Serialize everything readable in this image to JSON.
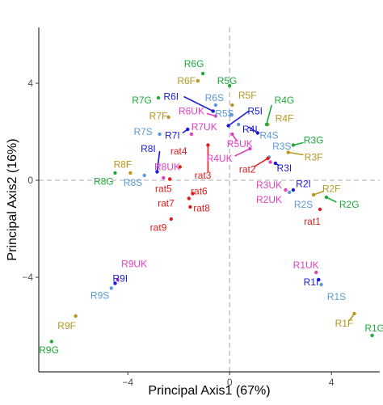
{
  "chart_data": {
    "type": "scatter",
    "xlabel": "Principal Axis1 (67%)",
    "ylabel": "Principal Axis2 (16%)",
    "xlim": [
      -7.5,
      5.9
    ],
    "ylim": [
      -7.9,
      6.3
    ],
    "xticks": [
      -4,
      0,
      4
    ],
    "yticks": [
      -4,
      0,
      4
    ],
    "tick_labels": {
      "x": [
        "−4",
        "0",
        "4"
      ],
      "y": [
        "−4",
        "0",
        "4"
      ]
    },
    "reference_lines": {
      "x": 0,
      "y": 0,
      "style": "dashed"
    },
    "grid": false,
    "legend": "none",
    "colors": {
      "red": "#e31a1c",
      "gold": "#b8961e",
      "green": "#1eab3c",
      "blue": "#1a1ad6",
      "sky": "#5b9ad5",
      "magenta": "#e040c0",
      "axis": "#000000",
      "refline": "#c8c8c8",
      "tick_text": "#4d4d4d"
    },
    "points": [
      {
        "label": "R1F",
        "color": "gold",
        "x": 4.9,
        "y": -5.5,
        "lx": 4.5,
        "ly": -5.9
      },
      {
        "label": "R1G",
        "color": "green",
        "x": 5.6,
        "y": -6.4,
        "lx": 5.7,
        "ly": -6.1
      },
      {
        "label": "R1I",
        "color": "blue",
        "x": 3.5,
        "y": -4.1,
        "lx": 3.2,
        "ly": -4.2
      },
      {
        "label": "R1S",
        "color": "sky",
        "x": 3.6,
        "y": -4.3,
        "lx": 4.2,
        "ly": -4.8
      },
      {
        "label": "R1UK",
        "color": "magenta",
        "x": 3.4,
        "y": -3.8,
        "lx": 3.0,
        "ly": -3.5
      },
      {
        "label": "R2F",
        "color": "gold",
        "x": 3.3,
        "y": -0.6,
        "lx": 4.0,
        "ly": -0.35
      },
      {
        "label": "R2G",
        "color": "green",
        "x": 3.8,
        "y": -0.7,
        "lx": 4.7,
        "ly": -1.0
      },
      {
        "label": "R2I",
        "color": "blue",
        "x": 2.5,
        "y": -0.4,
        "lx": 2.9,
        "ly": -0.15
      },
      {
        "label": "R2S",
        "color": "sky",
        "x": 2.35,
        "y": -0.5,
        "lx": 2.9,
        "ly": -1.0
      },
      {
        "label": "R2UK",
        "color": "magenta",
        "x": 2.2,
        "y": -0.4,
        "lx": 1.55,
        "ly": -0.8
      },
      {
        "label": "R3F",
        "color": "gold",
        "x": 2.3,
        "y": 1.15,
        "lx": 3.3,
        "ly": 0.95
      },
      {
        "label": "R3G",
        "color": "green",
        "x": 2.5,
        "y": 1.45,
        "lx": 3.3,
        "ly": 1.65
      },
      {
        "label": "R3I",
        "color": "blue",
        "x": 1.8,
        "y": 0.7,
        "lx": 2.15,
        "ly": 0.5
      },
      {
        "label": "R3S",
        "color": "sky",
        "x": 1.55,
        "y": 0.95,
        "lx": 2.05,
        "ly": 1.4
      },
      {
        "label": "R3UK",
        "color": "magenta",
        "x": 1.6,
        "y": 0.75,
        "lx": 1.55,
        "ly": -0.2
      },
      {
        "label": "R4F",
        "color": "gold",
        "x": 1.5,
        "y": 2.3,
        "lx": 2.15,
        "ly": 2.55
      },
      {
        "label": "R4G",
        "color": "green",
        "x": 1.45,
        "y": 2.3,
        "lx": 2.15,
        "ly": 3.3
      },
      {
        "label": "R4I",
        "color": "blue",
        "x": 1.1,
        "y": 1.95,
        "lx": 0.8,
        "ly": 2.1
      },
      {
        "label": "R4S",
        "color": "sky",
        "x": 0.35,
        "y": 2.3,
        "lx": 1.55,
        "ly": 1.85
      },
      {
        "label": "R4UK",
        "color": "magenta",
        "x": 0.8,
        "y": 1.3,
        "lx": -0.4,
        "ly": 0.9
      },
      {
        "label": "R5F",
        "color": "gold",
        "x": 0.1,
        "y": 3.1,
        "lx": 0.7,
        "ly": 3.5
      },
      {
        "label": "R5G",
        "color": "green",
        "x": 0.0,
        "y": 3.9,
        "lx": -0.1,
        "ly": 4.1
      },
      {
        "label": "R5I",
        "color": "blue",
        "x": -0.05,
        "y": 2.25,
        "lx": 1.0,
        "ly": 2.85
      },
      {
        "label": "R5S",
        "color": "sky",
        "x": 0.05,
        "y": 2.7,
        "lx": -0.2,
        "ly": 2.75
      },
      {
        "label": "R5UK",
        "color": "magenta",
        "x": 0.1,
        "y": 1.9,
        "lx": 0.4,
        "ly": 1.5
      },
      {
        "label": "R6F",
        "color": "gold",
        "x": -1.25,
        "y": 4.1,
        "lx": -1.7,
        "ly": 4.1
      },
      {
        "label": "R6G",
        "color": "green",
        "x": -1.05,
        "y": 4.4,
        "lx": -1.4,
        "ly": 4.8
      },
      {
        "label": "R6I",
        "color": "blue",
        "x": -0.65,
        "y": 2.85,
        "lx": -2.3,
        "ly": 3.45
      },
      {
        "label": "R6S",
        "color": "sky",
        "x": -0.55,
        "y": 3.1,
        "lx": -0.6,
        "ly": 3.4
      },
      {
        "label": "R6UK",
        "color": "magenta",
        "x": -0.55,
        "y": 2.65,
        "lx": -1.5,
        "ly": 2.85
      },
      {
        "label": "R7F",
        "color": "gold",
        "x": -2.4,
        "y": 2.6,
        "lx": -2.8,
        "ly": 2.65
      },
      {
        "label": "R7G",
        "color": "green",
        "x": -2.8,
        "y": 3.4,
        "lx": -3.45,
        "ly": 3.3
      },
      {
        "label": "R7I",
        "color": "blue",
        "x": -1.65,
        "y": 2.1,
        "lx": -2.25,
        "ly": 1.85
      },
      {
        "label": "R7S",
        "color": "sky",
        "x": -2.75,
        "y": 1.9,
        "lx": -3.4,
        "ly": 2.0
      },
      {
        "label": "R7UK",
        "color": "magenta",
        "x": -1.5,
        "y": 1.9,
        "lx": -1.0,
        "ly": 2.2
      },
      {
        "label": "R8F",
        "color": "gold",
        "x": -3.9,
        "y": 0.3,
        "lx": -4.2,
        "ly": 0.65
      },
      {
        "label": "R8G",
        "color": "green",
        "x": -4.5,
        "y": 0.3,
        "lx": -4.95,
        "ly": -0.05
      },
      {
        "label": "R8I",
        "color": "blue",
        "x": -2.85,
        "y": 0.35,
        "lx": -3.2,
        "ly": 1.3
      },
      {
        "label": "R8S",
        "color": "sky",
        "x": -3.35,
        "y": 0.2,
        "lx": -3.8,
        "ly": -0.1
      },
      {
        "label": "R8UK",
        "color": "magenta",
        "x": -2.6,
        "y": 0.1,
        "lx": -2.45,
        "ly": 0.55
      },
      {
        "label": "R9F",
        "color": "gold",
        "x": -6.05,
        "y": -5.6,
        "lx": -6.4,
        "ly": -6.0
      },
      {
        "label": "R9G",
        "color": "green",
        "x": -7.0,
        "y": -6.65,
        "lx": -7.1,
        "ly": -7.0
      },
      {
        "label": "R9I",
        "color": "blue",
        "x": -4.5,
        "y": -4.25,
        "lx": -4.3,
        "ly": -4.05
      },
      {
        "label": "R9S",
        "color": "sky",
        "x": -4.65,
        "y": -4.45,
        "lx": -5.1,
        "ly": -4.75
      },
      {
        "label": "R9UK",
        "color": "magenta",
        "x": -4.4,
        "y": -4.1,
        "lx": -3.75,
        "ly": -3.45
      },
      {
        "label": "rat1",
        "color": "red",
        "x": 3.55,
        "y": -1.2,
        "lx": 3.25,
        "ly": -1.7
      },
      {
        "label": "rat2",
        "color": "red",
        "x": 1.5,
        "y": 0.9,
        "lx": 0.7,
        "ly": 0.45
      },
      {
        "label": "rat3",
        "color": "red",
        "x": -0.85,
        "y": 1.45,
        "lx": -1.05,
        "ly": 0.2
      },
      {
        "label": "rat4",
        "color": "red",
        "x": -1.95,
        "y": 0.55,
        "lx": -2.0,
        "ly": 1.2
      },
      {
        "label": "rat5",
        "color": "red",
        "x": -2.35,
        "y": 0.05,
        "lx": -2.6,
        "ly": -0.35
      },
      {
        "label": "rat6",
        "color": "red",
        "x": -1.45,
        "y": -0.55,
        "lx": -1.2,
        "ly": -0.45
      },
      {
        "label": "rat7",
        "color": "red",
        "x": -1.6,
        "y": -0.75,
        "lx": -2.5,
        "ly": -0.95
      },
      {
        "label": "rat8",
        "color": "red",
        "x": -1.55,
        "y": -1.1,
        "lx": -1.1,
        "ly": -1.15
      },
      {
        "label": "rat9",
        "color": "red",
        "x": -2.3,
        "y": -1.6,
        "lx": -2.8,
        "ly": -1.95
      }
    ],
    "connectors": [
      {
        "from": "R5I",
        "label_end": [
          0.75,
          2.85
        ]
      },
      {
        "from": "R6I",
        "label_end": [
          -1.8,
          3.45
        ]
      },
      {
        "from": "R4UK",
        "label_end": [
          0.2,
          1.0
        ]
      },
      {
        "from": "R4G",
        "label_end": [
          1.65,
          3.1
        ]
      },
      {
        "from": "R4I",
        "label_end": [
          0.75,
          2.2
        ]
      },
      {
        "from": "R5UK",
        "label_end": [
          0.3,
          1.6
        ]
      },
      {
        "from": "R7I",
        "label_end": [
          -1.85,
          1.95
        ]
      },
      {
        "from": "R8I",
        "label_end": [
          -2.75,
          1.2
        ]
      },
      {
        "from": "R6UK",
        "label_end": [
          -0.9,
          2.75
        ]
      },
      {
        "from": "R2G",
        "label_end": [
          4.2,
          -0.9
        ]
      },
      {
        "from": "R2F",
        "label_end": [
          3.7,
          -0.45
        ]
      },
      {
        "from": "R3G",
        "label_end": [
          2.9,
          1.55
        ]
      },
      {
        "from": "R3F",
        "label_end": [
          2.9,
          1.05
        ]
      },
      {
        "from": "R3I",
        "label_end": [
          1.95,
          0.6
        ]
      },
      {
        "from": "rat3",
        "label_end": [
          -0.85,
          0.35
        ]
      },
      {
        "from": "rat2",
        "label_end": [
          0.95,
          0.55
        ]
      },
      {
        "from": "R1F",
        "label_end": [
          4.7,
          -5.8
        ]
      }
    ]
  }
}
